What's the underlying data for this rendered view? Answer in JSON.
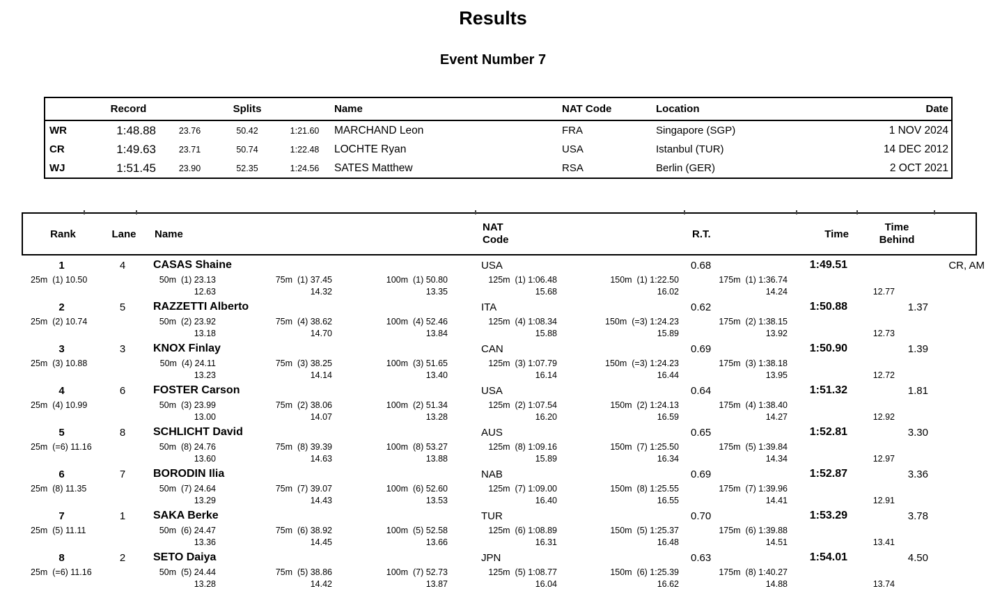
{
  "page": {
    "title": "Results",
    "subtitle": "Event Number 7"
  },
  "records_table": {
    "headers": {
      "record": "Record",
      "splits": "Splits",
      "name": "Name",
      "nat_code": "NAT Code",
      "location": "Location",
      "date": "Date"
    },
    "rows": [
      {
        "label": "WR",
        "time": "1:48.88",
        "split1": "23.76",
        "split2": "50.42",
        "split3": "1:21.60",
        "name": "MARCHAND Leon",
        "nat": "FRA",
        "location": "Singapore (SGP)",
        "date": "1 NOV 2024"
      },
      {
        "label": "CR",
        "time": "1:49.63",
        "split1": "23.71",
        "split2": "50.74",
        "split3": "1:22.48",
        "name": "LOCHTE Ryan",
        "nat": "USA",
        "location": "Istanbul (TUR)",
        "date": "14 DEC 2012"
      },
      {
        "label": "WJ",
        "time": "1:51.45",
        "split1": "23.90",
        "split2": "52.35",
        "split3": "1:24.56",
        "name": "SATES Matthew",
        "nat": "RSA",
        "location": "Berlin (GER)",
        "date": "2 OCT 2021"
      }
    ]
  },
  "results_table": {
    "headers": {
      "rank": "Rank",
      "lane": "Lane",
      "name": "Name",
      "nat_code": "NAT Code",
      "rt": "R.T.",
      "time": "Time",
      "time_behind": "Time Behind"
    },
    "rows": [
      {
        "rank": "1",
        "lane": "4",
        "name": "CASAS Shaine",
        "nat": "USA",
        "rt": "0.68",
        "time": "1:49.51",
        "behind": "",
        "notes": "CR, AM",
        "final_split": "12.77",
        "splits": [
          {
            "label": "25m",
            "place": "1",
            "time": "10.50",
            "sub": ""
          },
          {
            "label": "50m",
            "place": "1",
            "time": "23.13",
            "sub": "12.63"
          },
          {
            "label": "75m",
            "place": "1",
            "time": "37.45",
            "sub": "14.32"
          },
          {
            "label": "100m",
            "place": "1",
            "time": "50.80",
            "sub": "13.35"
          },
          {
            "label": "125m",
            "place": "1",
            "time": "1:06.48",
            "sub": "15.68"
          },
          {
            "label": "150m",
            "place": "1",
            "time": "1:22.50",
            "sub": "16.02"
          },
          {
            "label": "175m",
            "place": "1",
            "time": "1:36.74",
            "sub": "14.24"
          }
        ]
      },
      {
        "rank": "2",
        "lane": "5",
        "name": "RAZZETTI Alberto",
        "nat": "ITA",
        "rt": "0.62",
        "time": "1:50.88",
        "behind": "1.37",
        "notes": "",
        "final_split": "12.73",
        "splits": [
          {
            "label": "25m",
            "place": "2",
            "time": "10.74",
            "sub": ""
          },
          {
            "label": "50m",
            "place": "2",
            "time": "23.92",
            "sub": "13.18"
          },
          {
            "label": "75m",
            "place": "4",
            "time": "38.62",
            "sub": "14.70"
          },
          {
            "label": "100m",
            "place": "4",
            "time": "52.46",
            "sub": "13.84"
          },
          {
            "label": "125m",
            "place": "4",
            "time": "1:08.34",
            "sub": "15.88"
          },
          {
            "label": "150m",
            "place": "=3",
            "time": "1:24.23",
            "sub": "15.89"
          },
          {
            "label": "175m",
            "place": "2",
            "time": "1:38.15",
            "sub": "13.92"
          }
        ]
      },
      {
        "rank": "3",
        "lane": "3",
        "name": "KNOX Finlay",
        "nat": "CAN",
        "rt": "0.69",
        "time": "1:50.90",
        "behind": "1.39",
        "notes": "",
        "final_split": "12.72",
        "splits": [
          {
            "label": "25m",
            "place": "3",
            "time": "10.88",
            "sub": ""
          },
          {
            "label": "50m",
            "place": "4",
            "time": "24.11",
            "sub": "13.23"
          },
          {
            "label": "75m",
            "place": "3",
            "time": "38.25",
            "sub": "14.14"
          },
          {
            "label": "100m",
            "place": "3",
            "time": "51.65",
            "sub": "13.40"
          },
          {
            "label": "125m",
            "place": "3",
            "time": "1:07.79",
            "sub": "16.14"
          },
          {
            "label": "150m",
            "place": "=3",
            "time": "1:24.23",
            "sub": "16.44"
          },
          {
            "label": "175m",
            "place": "3",
            "time": "1:38.18",
            "sub": "13.95"
          }
        ]
      },
      {
        "rank": "4",
        "lane": "6",
        "name": "FOSTER Carson",
        "nat": "USA",
        "rt": "0.64",
        "time": "1:51.32",
        "behind": "1.81",
        "notes": "",
        "final_split": "12.92",
        "splits": [
          {
            "label": "25m",
            "place": "4",
            "time": "10.99",
            "sub": ""
          },
          {
            "label": "50m",
            "place": "3",
            "time": "23.99",
            "sub": "13.00"
          },
          {
            "label": "75m",
            "place": "2",
            "time": "38.06",
            "sub": "14.07"
          },
          {
            "label": "100m",
            "place": "2",
            "time": "51.34",
            "sub": "13.28"
          },
          {
            "label": "125m",
            "place": "2",
            "time": "1:07.54",
            "sub": "16.20"
          },
          {
            "label": "150m",
            "place": "2",
            "time": "1:24.13",
            "sub": "16.59"
          },
          {
            "label": "175m",
            "place": "4",
            "time": "1:38.40",
            "sub": "14.27"
          }
        ]
      },
      {
        "rank": "5",
        "lane": "8",
        "name": "SCHLICHT David",
        "nat": "AUS",
        "rt": "0.65",
        "time": "1:52.81",
        "behind": "3.30",
        "notes": "",
        "final_split": "12.97",
        "splits": [
          {
            "label": "25m",
            "place": "=6",
            "time": "11.16",
            "sub": ""
          },
          {
            "label": "50m",
            "place": "8",
            "time": "24.76",
            "sub": "13.60"
          },
          {
            "label": "75m",
            "place": "8",
            "time": "39.39",
            "sub": "14.63"
          },
          {
            "label": "100m",
            "place": "8",
            "time": "53.27",
            "sub": "13.88"
          },
          {
            "label": "125m",
            "place": "8",
            "time": "1:09.16",
            "sub": "15.89"
          },
          {
            "label": "150m",
            "place": "7",
            "time": "1:25.50",
            "sub": "16.34"
          },
          {
            "label": "175m",
            "place": "5",
            "time": "1:39.84",
            "sub": "14.34"
          }
        ]
      },
      {
        "rank": "6",
        "lane": "7",
        "name": "BORODIN Ilia",
        "nat": "NAB",
        "rt": "0.69",
        "time": "1:52.87",
        "behind": "3.36",
        "notes": "",
        "final_split": "12.91",
        "splits": [
          {
            "label": "25m",
            "place": "8",
            "time": "11.35",
            "sub": ""
          },
          {
            "label": "50m",
            "place": "7",
            "time": "24.64",
            "sub": "13.29"
          },
          {
            "label": "75m",
            "place": "7",
            "time": "39.07",
            "sub": "14.43"
          },
          {
            "label": "100m",
            "place": "6",
            "time": "52.60",
            "sub": "13.53"
          },
          {
            "label": "125m",
            "place": "7",
            "time": "1:09.00",
            "sub": "16.40"
          },
          {
            "label": "150m",
            "place": "8",
            "time": "1:25.55",
            "sub": "16.55"
          },
          {
            "label": "175m",
            "place": "7",
            "time": "1:39.96",
            "sub": "14.41"
          }
        ]
      },
      {
        "rank": "7",
        "lane": "1",
        "name": "SAKA Berke",
        "nat": "TUR",
        "rt": "0.70",
        "time": "1:53.29",
        "behind": "3.78",
        "notes": "",
        "final_split": "13.41",
        "splits": [
          {
            "label": "25m",
            "place": "5",
            "time": "11.11",
            "sub": ""
          },
          {
            "label": "50m",
            "place": "6",
            "time": "24.47",
            "sub": "13.36"
          },
          {
            "label": "75m",
            "place": "6",
            "time": "38.92",
            "sub": "14.45"
          },
          {
            "label": "100m",
            "place": "5",
            "time": "52.58",
            "sub": "13.66"
          },
          {
            "label": "125m",
            "place": "6",
            "time": "1:08.89",
            "sub": "16.31"
          },
          {
            "label": "150m",
            "place": "5",
            "time": "1:25.37",
            "sub": "16.48"
          },
          {
            "label": "175m",
            "place": "6",
            "time": "1:39.88",
            "sub": "14.51"
          }
        ]
      },
      {
        "rank": "8",
        "lane": "2",
        "name": "SETO Daiya",
        "nat": "JPN",
        "rt": "0.63",
        "time": "1:54.01",
        "behind": "4.50",
        "notes": "",
        "final_split": "13.74",
        "splits": [
          {
            "label": "25m",
            "place": "=6",
            "time": "11.16",
            "sub": ""
          },
          {
            "label": "50m",
            "place": "5",
            "time": "24.44",
            "sub": "13.28"
          },
          {
            "label": "75m",
            "place": "5",
            "time": "38.86",
            "sub": "14.42"
          },
          {
            "label": "100m",
            "place": "7",
            "time": "52.73",
            "sub": "13.87"
          },
          {
            "label": "125m",
            "place": "5",
            "time": "1:08.77",
            "sub": "16.04"
          },
          {
            "label": "150m",
            "place": "6",
            "time": "1:25.39",
            "sub": "16.62"
          },
          {
            "label": "175m",
            "place": "8",
            "time": "1:40.27",
            "sub": "14.88"
          }
        ]
      }
    ]
  }
}
